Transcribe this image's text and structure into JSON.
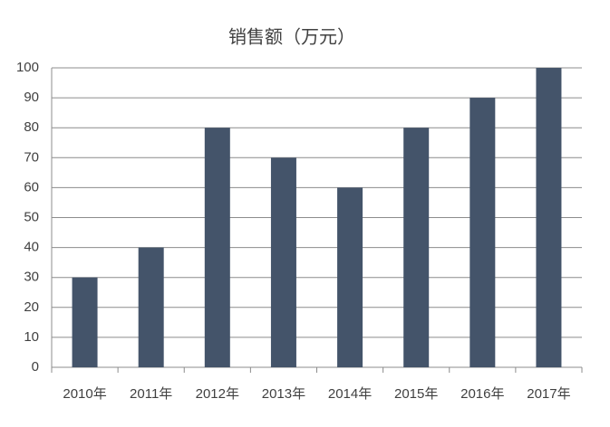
{
  "chart_data": {
    "type": "bar",
    "title": "销售额（万元）",
    "categories": [
      "2010年",
      "2011年",
      "2012年",
      "2013年",
      "2014年",
      "2015年",
      "2016年",
      "2017年"
    ],
    "values": [
      30,
      40,
      80,
      70,
      60,
      80,
      90,
      100
    ],
    "color": "#44546a",
    "ylim": [
      0,
      100
    ],
    "yticks": [
      0,
      10,
      20,
      30,
      40,
      50,
      60,
      70,
      80,
      90,
      100
    ],
    "grid": true
  }
}
